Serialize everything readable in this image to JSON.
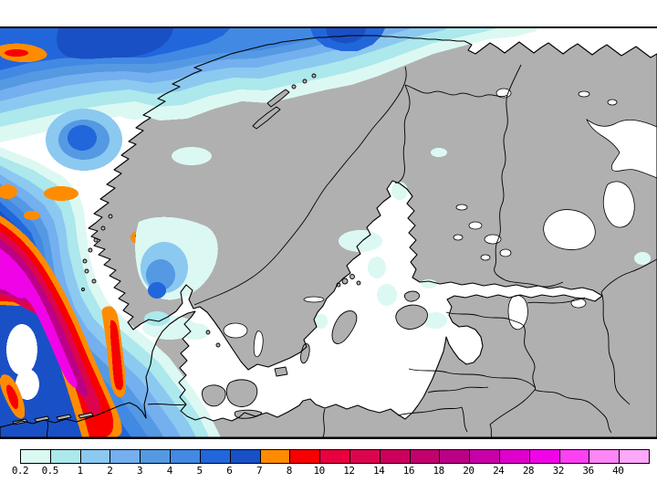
{
  "legend": {
    "tick_labels": [
      "0.2",
      "0.5",
      "1",
      "2",
      "3",
      "4",
      "5",
      "6",
      "7",
      "8",
      "10",
      "12",
      "14",
      "16",
      "18",
      "20",
      "24",
      "28",
      "32",
      "36",
      "40"
    ],
    "segment_colors": [
      "#DCF8F2",
      "#ACE8EC",
      "#8CC9F0",
      "#74AFEF",
      "#5499E2",
      "#4289E4",
      "#2266DB",
      "#1A50C6",
      "#FF8C00",
      "#F80000",
      "#E8003E",
      "#DD044E",
      "#CC005C",
      "#C2006E",
      "#BB0086",
      "#C900A8",
      "#DF00CB",
      "#F103E7",
      "#FC41F3",
      "#FD86F7",
      "#FDA8FA"
    ]
  },
  "map": {
    "land_color": "#B0B0B0",
    "sea_color": "#FFFFFF",
    "coast_color": "#000000",
    "frame_color": "#000000"
  }
}
